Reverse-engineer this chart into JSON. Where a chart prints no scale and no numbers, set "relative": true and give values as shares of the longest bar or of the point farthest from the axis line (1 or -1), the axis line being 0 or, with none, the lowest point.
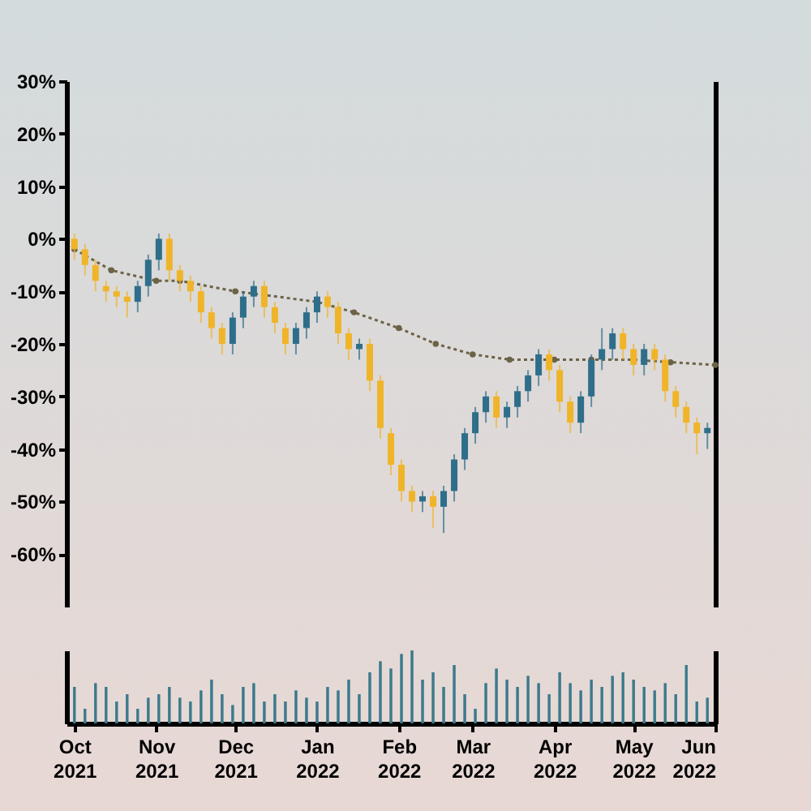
{
  "chart_data": [
    {
      "type": "candlestick",
      "x": [
        "2021-10-01",
        "2021-10-05",
        "2021-10-09",
        "2021-10-13",
        "2021-10-17",
        "2021-10-21",
        "2021-10-25",
        "2021-10-29",
        "2021-11-02",
        "2021-11-06",
        "2021-11-10",
        "2021-11-14",
        "2021-11-18",
        "2021-11-22",
        "2021-11-26",
        "2021-11-30",
        "2021-12-04",
        "2021-12-08",
        "2021-12-12",
        "2021-12-16",
        "2021-12-20",
        "2021-12-24",
        "2021-12-28",
        "2022-01-01",
        "2022-01-05",
        "2022-01-09",
        "2022-01-13",
        "2022-01-17",
        "2022-01-21",
        "2022-01-25",
        "2022-01-29",
        "2022-02-02",
        "2022-02-06",
        "2022-02-10",
        "2022-02-14",
        "2022-02-18",
        "2022-02-22",
        "2022-02-26",
        "2022-03-02",
        "2022-03-06",
        "2022-03-10",
        "2022-03-14",
        "2022-03-18",
        "2022-03-22",
        "2022-03-26",
        "2022-03-30",
        "2022-04-03",
        "2022-04-07",
        "2022-04-11",
        "2022-04-15",
        "2022-04-19",
        "2022-04-23",
        "2022-04-27",
        "2022-05-01",
        "2022-05-05",
        "2022-05-09",
        "2022-05-13",
        "2022-05-17",
        "2022-05-21",
        "2022-05-25",
        "2022-05-29"
      ],
      "ohlc": [
        [
          0,
          1,
          -4,
          -2
        ],
        [
          -2,
          -1,
          -7,
          -5
        ],
        [
          -5,
          -4,
          -10,
          -8
        ],
        [
          -9,
          -8,
          -12,
          -10
        ],
        [
          -10,
          -9,
          -13,
          -11
        ],
        [
          -11,
          -10,
          -15,
          -12
        ],
        [
          -12,
          -8,
          -14,
          -9
        ],
        [
          -9,
          -3,
          -11,
          -4
        ],
        [
          -4,
          1,
          -6,
          0
        ],
        [
          0,
          1,
          -8,
          -6
        ],
        [
          -6,
          -5,
          -10,
          -8
        ],
        [
          -8,
          -7,
          -12,
          -10
        ],
        [
          -10,
          -9,
          -16,
          -14
        ],
        [
          -14,
          -13,
          -19,
          -17
        ],
        [
          -17,
          -16,
          -22,
          -20
        ],
        [
          -20,
          -14,
          -22,
          -15
        ],
        [
          -15,
          -10,
          -17,
          -11
        ],
        [
          -11,
          -8,
          -13,
          -9
        ],
        [
          -9,
          -8,
          -15,
          -13
        ],
        [
          -13,
          -12,
          -18,
          -16
        ],
        [
          -17,
          -16,
          -22,
          -20
        ],
        [
          -20,
          -16,
          -22,
          -17
        ],
        [
          -17,
          -13,
          -19,
          -14
        ],
        [
          -14,
          -10,
          -16,
          -11
        ],
        [
          -11,
          -10,
          -15,
          -13
        ],
        [
          -13,
          -12,
          -20,
          -18
        ],
        [
          -18,
          -17,
          -23,
          -21
        ],
        [
          -21,
          -19,
          -23,
          -20
        ],
        [
          -20,
          -19,
          -29,
          -27
        ],
        [
          -27,
          -26,
          -38,
          -36
        ],
        [
          -37,
          -36,
          -45,
          -43
        ],
        [
          -43,
          -42,
          -50,
          -48
        ],
        [
          -48,
          -47,
          -52,
          -50
        ],
        [
          -50,
          -48,
          -52,
          -49
        ],
        [
          -49,
          -48,
          -55,
          -51
        ],
        [
          -51,
          -47,
          -56,
          -48
        ],
        [
          -48,
          -41,
          -50,
          -42
        ],
        [
          -42,
          -36,
          -44,
          -37
        ],
        [
          -37,
          -32,
          -39,
          -33
        ],
        [
          -33,
          -29,
          -35,
          -30
        ],
        [
          -30,
          -29,
          -36,
          -34
        ],
        [
          -34,
          -31,
          -36,
          -32
        ],
        [
          -32,
          -28,
          -34,
          -29
        ],
        [
          -29,
          -25,
          -31,
          -26
        ],
        [
          -26,
          -21,
          -28,
          -22
        ],
        [
          -22,
          -21,
          -27,
          -25
        ],
        [
          -25,
          -24,
          -33,
          -31
        ],
        [
          -31,
          -30,
          -37,
          -35
        ],
        [
          -35,
          -29,
          -37,
          -30
        ],
        [
          -30,
          -22,
          -32,
          -23
        ],
        [
          -23,
          -17,
          -25,
          -21
        ],
        [
          -21,
          -17,
          -23,
          -18
        ],
        [
          -18,
          -17,
          -23,
          -21
        ],
        [
          -21,
          -20,
          -26,
          -24
        ],
        [
          -24,
          -20,
          -26,
          -21
        ],
        [
          -21,
          -20,
          -25,
          -23
        ],
        [
          -23,
          -22,
          -31,
          -29
        ],
        [
          -29,
          -28,
          -34,
          -32
        ],
        [
          -32,
          -31,
          -37,
          -35
        ],
        [
          -35,
          -34,
          -41,
          -37
        ],
        [
          -37,
          -35,
          -40,
          -36
        ]
      ],
      "colors": [
        "#f0b429",
        "#f0b429",
        "#f0b429",
        "#f0b429",
        "#f0b429",
        "#f0b429",
        "#2e6e8a",
        "#2e6e8a",
        "#2e6e8a",
        "#f0b429",
        "#f0b429",
        "#f0b429",
        "#f0b429",
        "#f0b429",
        "#f0b429",
        "#2e6e8a",
        "#2e6e8a",
        "#2e6e8a",
        "#f0b429",
        "#f0b429",
        "#f0b429",
        "#2e6e8a",
        "#2e6e8a",
        "#2e6e8a",
        "#f0b429",
        "#f0b429",
        "#f0b429",
        "#2e6e8a",
        "#f0b429",
        "#f0b429",
        "#f0b429",
        "#f0b429",
        "#f0b429",
        "#2e6e8a",
        "#f0b429",
        "#2e6e8a",
        "#2e6e8a",
        "#2e6e8a",
        "#2e6e8a",
        "#2e6e8a",
        "#f0b429",
        "#2e6e8a",
        "#2e6e8a",
        "#2e6e8a",
        "#2e6e8a",
        "#f0b429",
        "#f0b429",
        "#f0b429",
        "#2e6e8a",
        "#2e6e8a",
        "#2e6e8a",
        "#2e6e8a",
        "#f0b429",
        "#f0b429",
        "#2e6e8a",
        "#f0b429",
        "#f0b429",
        "#f0b429",
        "#f0b429",
        "#f0b429",
        "#2e6e8a"
      ],
      "series": [
        {
          "type": "line",
          "color": "#6b6346",
          "line_style": "dotted",
          "marker": "circle",
          "x": [
            "2021-10-01",
            "2021-10-15",
            "2021-11-01",
            "2021-11-10",
            "2021-12-01",
            "2022-01-01",
            "2022-01-15",
            "2022-02-01",
            "2022-02-15",
            "2022-03-01",
            "2022-03-15",
            "2022-04-01",
            "2022-04-15",
            "2022-05-01",
            "2022-05-15",
            "2022-06-01"
          ],
          "values": [
            -2,
            -6,
            -8,
            -8,
            -10,
            -12,
            -14,
            -17,
            -20,
            -22,
            -23,
            -23,
            -23,
            -23,
            -23.5,
            -24
          ]
        }
      ],
      "xlim": [
        "2021-09-28",
        "2022-06-01"
      ],
      "ylim": [
        -70,
        30
      ],
      "yticks": [
        {
          "value": -60,
          "label": "-60%"
        },
        {
          "value": -50,
          "label": "-50%"
        },
        {
          "value": -40,
          "label": "-40%"
        },
        {
          "value": -30,
          "label": "-30%"
        },
        {
          "value": -20,
          "label": "-20%"
        },
        {
          "value": -10,
          "label": "-10%"
        },
        {
          "value": 0,
          "label": "0%"
        },
        {
          "value": 10,
          "label": "10%"
        },
        {
          "value": 20,
          "label": "20%"
        },
        {
          "value": 30,
          "label": "30%"
        }
      ],
      "tick_labels": "y"
    },
    {
      "type": "bar",
      "relative": true,
      "color": "#3d7a8c",
      "x": [
        "2021-10-01",
        "2021-10-05",
        "2021-10-09",
        "2021-10-13",
        "2021-10-17",
        "2021-10-21",
        "2021-10-25",
        "2021-10-29",
        "2021-11-02",
        "2021-11-06",
        "2021-11-10",
        "2021-11-14",
        "2021-11-18",
        "2021-11-22",
        "2021-11-26",
        "2021-11-30",
        "2021-12-04",
        "2021-12-08",
        "2021-12-12",
        "2021-12-16",
        "2021-12-20",
        "2021-12-24",
        "2021-12-28",
        "2022-01-01",
        "2022-01-05",
        "2022-01-09",
        "2022-01-13",
        "2022-01-17",
        "2022-01-21",
        "2022-01-25",
        "2022-01-29",
        "2022-02-02",
        "2022-02-06",
        "2022-02-10",
        "2022-02-14",
        "2022-02-18",
        "2022-02-22",
        "2022-02-26",
        "2022-03-02",
        "2022-03-06",
        "2022-03-10",
        "2022-03-14",
        "2022-03-18",
        "2022-03-22",
        "2022-03-26",
        "2022-03-30",
        "2022-04-03",
        "2022-04-07",
        "2022-04-11",
        "2022-04-15",
        "2022-04-19",
        "2022-04-23",
        "2022-04-27",
        "2022-05-01",
        "2022-05-05",
        "2022-05-09",
        "2022-05-13",
        "2022-05-17",
        "2022-05-21",
        "2022-05-25",
        "2022-05-29"
      ],
      "values": [
        0.5,
        0.2,
        0.55,
        0.5,
        0.3,
        0.4,
        0.2,
        0.35,
        0.4,
        0.5,
        0.35,
        0.3,
        0.45,
        0.6,
        0.4,
        0.25,
        0.5,
        0.55,
        0.3,
        0.4,
        0.3,
        0.45,
        0.35,
        0.3,
        0.5,
        0.45,
        0.6,
        0.4,
        0.7,
        0.85,
        0.75,
        0.95,
        1,
        0.6,
        0.7,
        0.5,
        0.8,
        0.4,
        0.2,
        0.55,
        0.75,
        0.6,
        0.5,
        0.65,
        0.55,
        0.4,
        0.7,
        0.55,
        0.45,
        0.6,
        0.5,
        0.65,
        0.7,
        0.6,
        0.5,
        0.45,
        0.55,
        0.4,
        0.8,
        0.3,
        0.35
      ],
      "xlim": [
        "2021-09-28",
        "2022-06-01"
      ],
      "xticks": [
        {
          "value": "2021-10-01",
          "label": "Oct 2021"
        },
        {
          "value": "2021-11-01",
          "label": "Nov 2021"
        },
        {
          "value": "2021-12-01",
          "label": "Dec 2021"
        },
        {
          "value": "2022-01-01",
          "label": "Jan 2022"
        },
        {
          "value": "2022-02-01",
          "label": "Feb 2022"
        },
        {
          "value": "2022-03-01",
          "label": "Mar 2022"
        },
        {
          "value": "2022-04-01",
          "label": "Apr 2022"
        },
        {
          "value": "2022-05-01",
          "label": "May 2022"
        },
        {
          "value": "2022-06-01",
          "label": "Jun 2022"
        }
      ],
      "tick_labels": "x"
    }
  ]
}
